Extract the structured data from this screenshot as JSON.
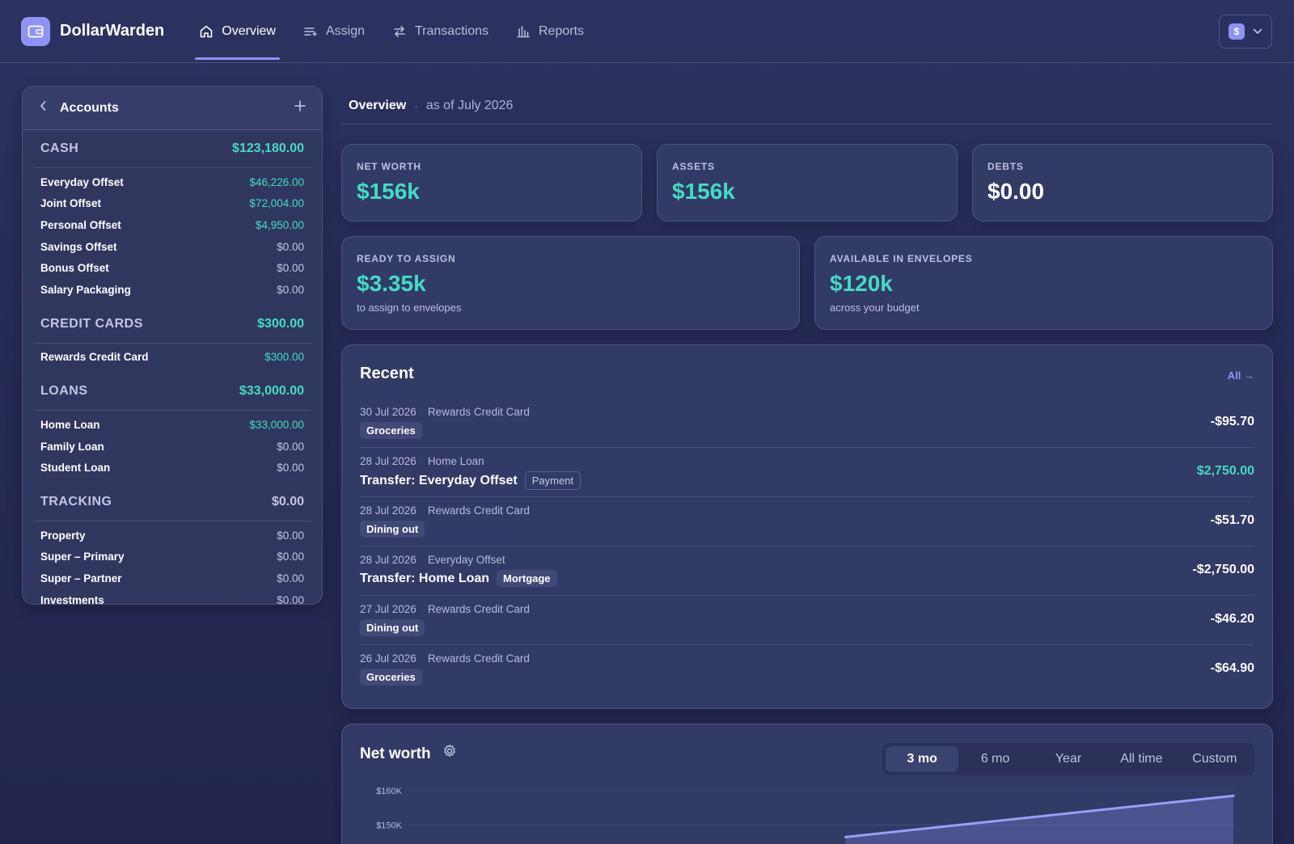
{
  "app": {
    "name": "DollarWarden"
  },
  "nav": {
    "items": [
      {
        "label": "Overview",
        "icon": "home-icon",
        "active": true
      },
      {
        "label": "Assign",
        "icon": "list-icon",
        "active": false
      },
      {
        "label": "Transactions",
        "icon": "swap-icon",
        "active": false
      },
      {
        "label": "Reports",
        "icon": "bar-chart-icon",
        "active": false
      }
    ],
    "user_badge": "$"
  },
  "sidebar": {
    "title": "Accounts",
    "groups": [
      {
        "name": "CASH",
        "total": "$123,180.00",
        "accounts": [
          {
            "name": "Everyday Offset",
            "balance": "$46,226.00"
          },
          {
            "name": "Joint Offset",
            "balance": "$72,004.00"
          },
          {
            "name": "Personal Offset",
            "balance": "$4,950.00"
          },
          {
            "name": "Savings Offset",
            "balance": "$0.00"
          },
          {
            "name": "Bonus Offset",
            "balance": "$0.00"
          },
          {
            "name": "Salary Packaging",
            "balance": "$0.00"
          }
        ]
      },
      {
        "name": "CREDIT CARDS",
        "total": "$300.00",
        "accounts": [
          {
            "name": "Rewards Credit Card",
            "balance": "$300.00"
          }
        ]
      },
      {
        "name": "LOANS",
        "total": "$33,000.00",
        "accounts": [
          {
            "name": "Home Loan",
            "balance": "$33,000.00"
          },
          {
            "name": "Family Loan",
            "balance": "$0.00"
          },
          {
            "name": "Student Loan",
            "balance": "$0.00"
          }
        ]
      },
      {
        "name": "TRACKING",
        "total": "$0.00",
        "accounts": [
          {
            "name": "Property",
            "balance": "$0.00"
          },
          {
            "name": "Super – Primary",
            "balance": "$0.00"
          },
          {
            "name": "Super – Partner",
            "balance": "$0.00"
          },
          {
            "name": "Investments",
            "balance": "$0.00"
          }
        ]
      }
    ]
  },
  "main": {
    "title": "Overview",
    "subtitle": "as of July 2026",
    "stats": {
      "net_worth": {
        "label": "NET WORTH",
        "value": "$156k"
      },
      "assets": {
        "label": "ASSETS",
        "value": "$156k"
      },
      "debts": {
        "label": "DEBTS",
        "value": "$0.00"
      },
      "ready": {
        "label": "READY TO ASSIGN",
        "value": "$3.35k",
        "note": "to assign to envelopes"
      },
      "available": {
        "label": "AVAILABLE IN ENVELOPES",
        "value": "$120k",
        "note": "across your budget"
      }
    },
    "recent": {
      "title": "Recent",
      "all_label": "All →",
      "transactions": [
        {
          "date": "30 Jul 2026",
          "account": "Rewards Credit Card",
          "payee": "",
          "tag": "Groceries",
          "tag_style": "filled",
          "amount": "-$95.70",
          "positive": false
        },
        {
          "date": "28 Jul 2026",
          "account": "Home Loan",
          "payee": "Transfer: Everyday Offset",
          "tag": "Payment",
          "tag_style": "outline",
          "amount": "$2,750.00",
          "positive": true
        },
        {
          "date": "28 Jul 2026",
          "account": "Rewards Credit Card",
          "payee": "",
          "tag": "Dining out",
          "tag_style": "filled",
          "amount": "-$51.70",
          "positive": false
        },
        {
          "date": "28 Jul 2026",
          "account": "Everyday Offset",
          "payee": "Transfer: Home Loan",
          "tag": "Mortgage",
          "tag_style": "filled",
          "amount": "-$2,750.00",
          "positive": false
        },
        {
          "date": "27 Jul 2026",
          "account": "Rewards Credit Card",
          "payee": "",
          "tag": "Dining out",
          "tag_style": "filled",
          "amount": "-$46.20",
          "positive": false
        },
        {
          "date": "26 Jul 2026",
          "account": "Rewards Credit Card",
          "payee": "",
          "tag": "Groceries",
          "tag_style": "filled",
          "amount": "-$64.90",
          "positive": false
        }
      ]
    },
    "net_worth_chart": {
      "title": "Net worth",
      "ranges": [
        "3 mo",
        "6 mo",
        "Year",
        "All time",
        "Custom"
      ],
      "active_range": "3 mo"
    }
  },
  "chart_data": {
    "type": "area",
    "title": "Net worth",
    "y_tick_labels": [
      "$160K",
      "$150K"
    ],
    "y_ticks": [
      160000,
      150000
    ],
    "series": [
      {
        "x": [
          0.53,
          1.0
        ],
        "values": [
          146500,
          158500
        ]
      }
    ],
    "ylim": [
      140000,
      160000
    ],
    "grid": true
  },
  "colors": {
    "accent": "#8f93f5",
    "positive": "#43dcc2",
    "text": "#ffffff",
    "muted": "#c3c6e2"
  }
}
